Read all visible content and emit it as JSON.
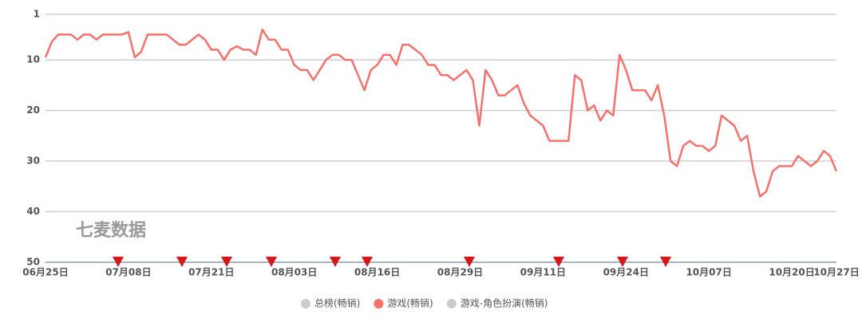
{
  "chart_data": {
    "type": "line",
    "watermark": "七麦数据",
    "categories": [
      "06月25日",
      null,
      null,
      null,
      null,
      null,
      null,
      null,
      null,
      null,
      null,
      null,
      null,
      "07月08日",
      null,
      null,
      null,
      null,
      null,
      null,
      null,
      null,
      null,
      null,
      null,
      null,
      "07月21日",
      null,
      null,
      null,
      null,
      null,
      null,
      null,
      null,
      null,
      null,
      null,
      null,
      "08月03日",
      null,
      null,
      null,
      null,
      null,
      null,
      null,
      null,
      null,
      null,
      null,
      null,
      "08月16日",
      null,
      null,
      null,
      null,
      null,
      null,
      null,
      null,
      null,
      null,
      null,
      null,
      "08月29日",
      null,
      null,
      null,
      null,
      null,
      null,
      null,
      null,
      null,
      null,
      null,
      null,
      "09月11日",
      null,
      null,
      null,
      null,
      null,
      null,
      null,
      null,
      null,
      null,
      null,
      null,
      "09月24日",
      null,
      null,
      null,
      null,
      null,
      null,
      null,
      null,
      null,
      null,
      null,
      null,
      "10月07日",
      null,
      null,
      null,
      null,
      null,
      null,
      null,
      null,
      null,
      null,
      null,
      null,
      "10月20日",
      null,
      null,
      null,
      null,
      null,
      null,
      "10月27日"
    ],
    "series": [
      {
        "name": "游戏(畅销)",
        "color": "#f7706a",
        "values": [
          9.5,
          6.4,
          5,
          5,
          5,
          6,
          5,
          5,
          6,
          5,
          5,
          5,
          5,
          4.5,
          9.5,
          8.4,
          5,
          5,
          5,
          5,
          6,
          7,
          7,
          6,
          5,
          6,
          8,
          8,
          10,
          8,
          7.3,
          8,
          8,
          9,
          4,
          6,
          6,
          8,
          8,
          11,
          12,
          12,
          14,
          12,
          10,
          9,
          9,
          10,
          10,
          13,
          16,
          12,
          11,
          9,
          9,
          11,
          7,
          7,
          8,
          9,
          11,
          11,
          13,
          13,
          14,
          13,
          12,
          14,
          23,
          12,
          14,
          17,
          17,
          16,
          15,
          18.6,
          21,
          22,
          23,
          26,
          26,
          26,
          26,
          13,
          14,
          20,
          19,
          22,
          20,
          21,
          9,
          12,
          16,
          16,
          16,
          18,
          15,
          21,
          30,
          31,
          27,
          26,
          27,
          27,
          28,
          27,
          21,
          22,
          23,
          26,
          25,
          32,
          37,
          36,
          32,
          31,
          31,
          31,
          29,
          30,
          31,
          30,
          28,
          29,
          32
        ]
      }
    ],
    "legend": [
      {
        "name": "总榜(畅销)",
        "color": "#cccccc"
      },
      {
        "name": "游戏(畅销)",
        "color": "#f7706a"
      },
      {
        "name": "游戏-角色扮演(畅销)",
        "color": "#cccccc"
      }
    ],
    "ylim": [
      50,
      1
    ],
    "yticks": [
      1,
      10,
      20,
      30,
      40,
      50
    ],
    "grid": true
  }
}
